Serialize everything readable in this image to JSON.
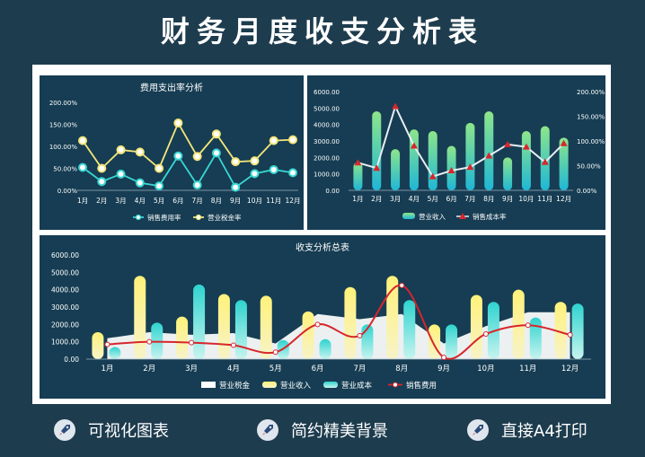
{
  "page": {
    "title": "财务月度收支分析表"
  },
  "features": [
    {
      "label": "可视化图表",
      "icon": "rocket-icon"
    },
    {
      "label": "简约精美背景",
      "icon": "rocket-icon"
    },
    {
      "label": "直接A4打印",
      "icon": "rocket-icon"
    }
  ],
  "colors": {
    "background": "#1d3c4e",
    "panel": "#163d53",
    "cyan": "#39d6d3",
    "yellow": "#f4e67a",
    "red": "#d7262c"
  },
  "chart_data": [
    {
      "type": "line",
      "title": "费用支出率分析",
      "categories": [
        "1月",
        "2月",
        "3月",
        "4月",
        "5月",
        "6月",
        "7月",
        "8月",
        "9月",
        "10月",
        "11月",
        "12月"
      ],
      "yticks": [
        "0.00%",
        "50.00%",
        "100.00%",
        "150.00%",
        "200.00%"
      ],
      "ylim": [
        0,
        200
      ],
      "series": [
        {
          "name": "销售费用率",
          "color": "#39d6d3",
          "values": [
            52,
            20,
            37,
            17,
            10,
            78,
            12,
            85,
            7,
            38,
            47,
            40
          ]
        },
        {
          "name": "营业税金率",
          "color": "#f4e67a",
          "values": [
            113,
            50,
            92,
            87,
            50,
            153,
            77,
            128,
            65,
            67,
            113,
            115
          ]
        }
      ],
      "legend": "bottom"
    },
    {
      "type": "bar",
      "categories": [
        "1月",
        "2月",
        "3月",
        "4月",
        "5月",
        "6月",
        "7月",
        "8月",
        "9月",
        "10月",
        "11月",
        "12月"
      ],
      "yticks_left": [
        "0.00",
        "1000.00",
        "2000.00",
        "3000.00",
        "4000.00",
        "5000.00",
        "6000.00"
      ],
      "yticks_right": [
        "0.00%",
        "50.00%",
        "100.00%",
        "150.00%",
        "200.00%"
      ],
      "ylim": [
        0,
        6000
      ],
      "ylim_right": [
        0,
        200
      ],
      "series": [
        {
          "name": "营业收入",
          "type": "bar",
          "values": [
            1700,
            4800,
            2500,
            3700,
            3600,
            2700,
            4100,
            4800,
            2000,
            3600,
            3900,
            3200
          ]
        },
        {
          "name": "销售成本率",
          "type": "line",
          "axis": "right",
          "color": "#d7262c",
          "values": [
            56,
            45,
            170,
            90,
            28,
            40,
            47,
            70,
            93,
            88,
            57,
            95
          ]
        }
      ],
      "legend": "bottom"
    },
    {
      "type": "bar",
      "title": "收支分析总表",
      "categories": [
        "1月",
        "2月",
        "3月",
        "4月",
        "5月",
        "6月",
        "7月",
        "8月",
        "9月",
        "10月",
        "11月",
        "12月"
      ],
      "yticks": [
        "0.00",
        "1000.00",
        "2000.00",
        "3000.00",
        "4000.00",
        "5000.00",
        "6000.00"
      ],
      "ylim": [
        0,
        6000
      ],
      "series": [
        {
          "name": "营业税金",
          "type": "area",
          "color": "#ffffff",
          "values": [
            1200,
            1550,
            1400,
            1500,
            900,
            2600,
            2300,
            2600,
            900,
            1900,
            2700,
            2700
          ]
        },
        {
          "name": "营业收入",
          "type": "bar",
          "color": "#f4e67a",
          "values": [
            1550,
            4800,
            2450,
            3750,
            3650,
            2750,
            4150,
            4800,
            2000,
            3700,
            4000,
            3300
          ]
        },
        {
          "name": "营业成本",
          "type": "bar",
          "color": "#39d6d3",
          "values": [
            700,
            2100,
            4300,
            3400,
            1100,
            1150,
            2000,
            3400,
            2000,
            3300,
            2400,
            3200
          ]
        },
        {
          "name": "销售费用",
          "type": "line",
          "color": "#d7262c",
          "values": [
            850,
            1000,
            950,
            800,
            400,
            2000,
            1350,
            4250,
            100,
            1450,
            1950,
            1400
          ]
        }
      ],
      "legend": "bottom"
    }
  ]
}
